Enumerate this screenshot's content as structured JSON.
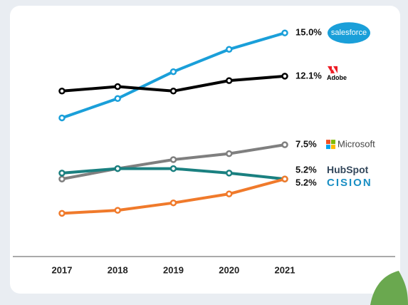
{
  "chart_data": {
    "type": "line",
    "categories": [
      "2017",
      "2018",
      "2019",
      "2020",
      "2021"
    ],
    "ylim": [
      0,
      17
    ],
    "series": [
      {
        "name": "salesforce",
        "color": "#1a9fd9",
        "values": [
          9.3,
          10.6,
          12.4,
          13.9,
          15.0
        ],
        "value_labels": [
          null,
          null,
          null,
          null,
          "15.0%"
        ]
      },
      {
        "name": "Adobe",
        "color": "#000000",
        "values": [
          11.1,
          11.4,
          11.1,
          11.8,
          12.1
        ],
        "value_labels": [
          null,
          null,
          null,
          null,
          "12.1%"
        ]
      },
      {
        "name": "Microsoft",
        "color": "#7f7f7f",
        "values": [
          5.2,
          5.9,
          6.5,
          6.9,
          7.5
        ],
        "value_labels": [
          null,
          null,
          null,
          null,
          "7.5%"
        ]
      },
      {
        "name": "HubSpot",
        "color": "#1a8080",
        "values": [
          5.6,
          5.9,
          5.9,
          5.6,
          5.2
        ],
        "value_labels": [
          null,
          null,
          null,
          null,
          "5.2%"
        ]
      },
      {
        "name": "CISION",
        "color": "#f07a2b",
        "values": [
          2.9,
          3.1,
          3.6,
          4.2,
          5.2
        ],
        "value_labels": [
          null,
          null,
          null,
          null,
          "5.2%"
        ]
      }
    ]
  }
}
